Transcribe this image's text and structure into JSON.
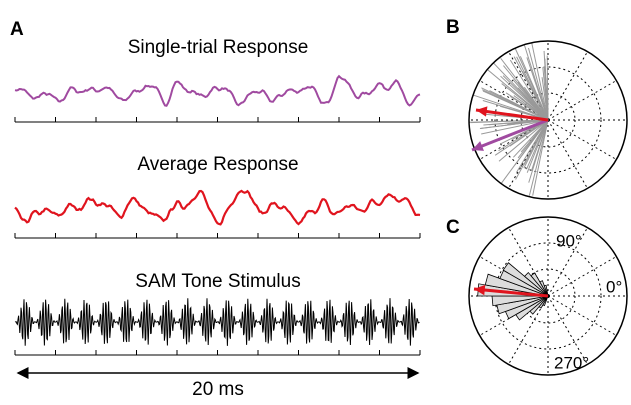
{
  "panels": {
    "a": {
      "label": "A",
      "traces": [
        "Single-trial Response",
        "Average Response",
        "SAM Tone Stimulus"
      ],
      "scale_bar": "20 ms"
    },
    "b": {
      "label": "B"
    },
    "c": {
      "label": "C",
      "angle_labels": [
        "90°",
        "0°",
        "270°"
      ]
    }
  }
}
